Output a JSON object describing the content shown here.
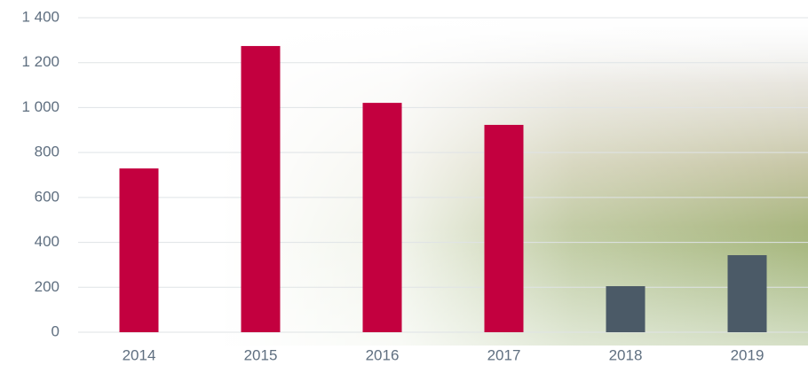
{
  "chart_data": {
    "type": "bar",
    "categories": [
      "2014",
      "2015",
      "2016",
      "2017",
      "2018",
      "2019"
    ],
    "values": [
      729,
      1274,
      1021,
      923,
      205,
      343
    ],
    "colors": [
      "#c3003f",
      "#c3003f",
      "#c3003f",
      "#c3003f",
      "#4b5a67",
      "#4b5a67"
    ],
    "ylim": [
      0,
      1400
    ],
    "yticks": [
      0,
      200,
      400,
      600,
      800,
      {
        "value": 1000,
        "label": "1 000"
      },
      {
        "value": 1200,
        "label": "1 200"
      },
      {
        "value": 1400,
        "label": "1 400"
      }
    ],
    "grid": true
  }
}
